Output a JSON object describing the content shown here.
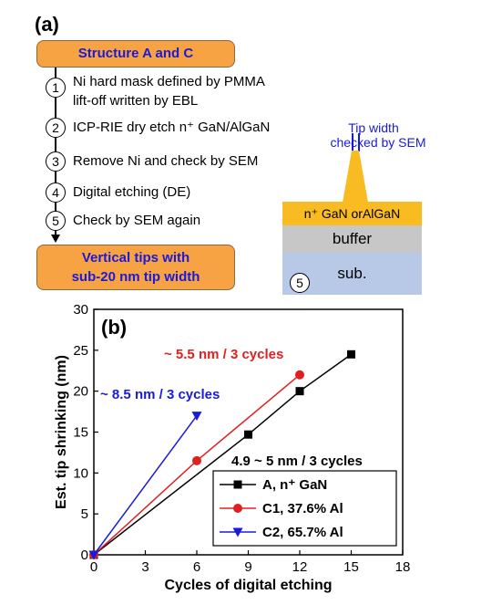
{
  "panel_a": {
    "label": "(a)",
    "top_banner": "Structure A and C",
    "steps": [
      {
        "num": "1",
        "lines": [
          "Ni hard mask defined by PMMA",
          "lift-off written by EBL"
        ]
      },
      {
        "num": "2",
        "lines": [
          "ICP-RIE dry etch n⁺ GaN/AlGaN"
        ]
      },
      {
        "num": "3",
        "lines": [
          "Remove Ni and check by SEM"
        ]
      },
      {
        "num": "4",
        "lines": [
          "Digital etching (DE)"
        ]
      },
      {
        "num": "5",
        "lines": [
          "Check by SEM again"
        ]
      }
    ],
    "bottom_banner": [
      "Vertical tips with",
      "sub-20 nm tip width"
    ],
    "diagram": {
      "tip_width_label": [
        "Tip width",
        "checked by SEM"
      ],
      "layer_top": "n⁺ GaN orAlGaN",
      "layer_mid": "buffer",
      "layer_bottom": "sub.",
      "step_marker": "5",
      "colors": {
        "top": "#f8bb22",
        "mid": "#c7c7c7",
        "bottom": "#b7c9e6",
        "tip": "#f8bb22",
        "label": "#1a1adb"
      }
    }
  },
  "chart_data": {
    "type": "line",
    "panel_label": "(b)",
    "xlabel": "Cycles of digital etching",
    "ylabel": "Est. tip shrinking (nm)",
    "xlim": [
      0,
      18
    ],
    "ylim": [
      0,
      30
    ],
    "xticks": [
      0,
      3,
      6,
      9,
      12,
      15,
      18
    ],
    "yticks": [
      0,
      5,
      10,
      15,
      20,
      25,
      30
    ],
    "grid": false,
    "legend_position": "bottom-right",
    "series": [
      {
        "name": "A, n⁺ GaN",
        "color": "#000000",
        "marker": "square",
        "x": [
          0,
          9,
          12,
          15
        ],
        "y": [
          0,
          14.7,
          20,
          24.5
        ]
      },
      {
        "name": "C1, 37.6% Al",
        "color": "#e02020",
        "marker": "circle",
        "x": [
          0,
          6,
          12
        ],
        "y": [
          0,
          11.5,
          22
        ]
      },
      {
        "name": "C2, 65.7% Al",
        "color": "#1a1adb",
        "marker": "triangle-down",
        "x": [
          0,
          6
        ],
        "y": [
          0,
          17
        ]
      }
    ],
    "annotations": [
      {
        "text": "~ 5.5 nm / 3 cycles",
        "color": "#e02020"
      },
      {
        "text": "~ 8.5 nm / 3 cycles",
        "color": "#1a1adb"
      },
      {
        "text": "4.9 ~ 5 nm / 3 cycles",
        "color": "#000000"
      }
    ]
  }
}
